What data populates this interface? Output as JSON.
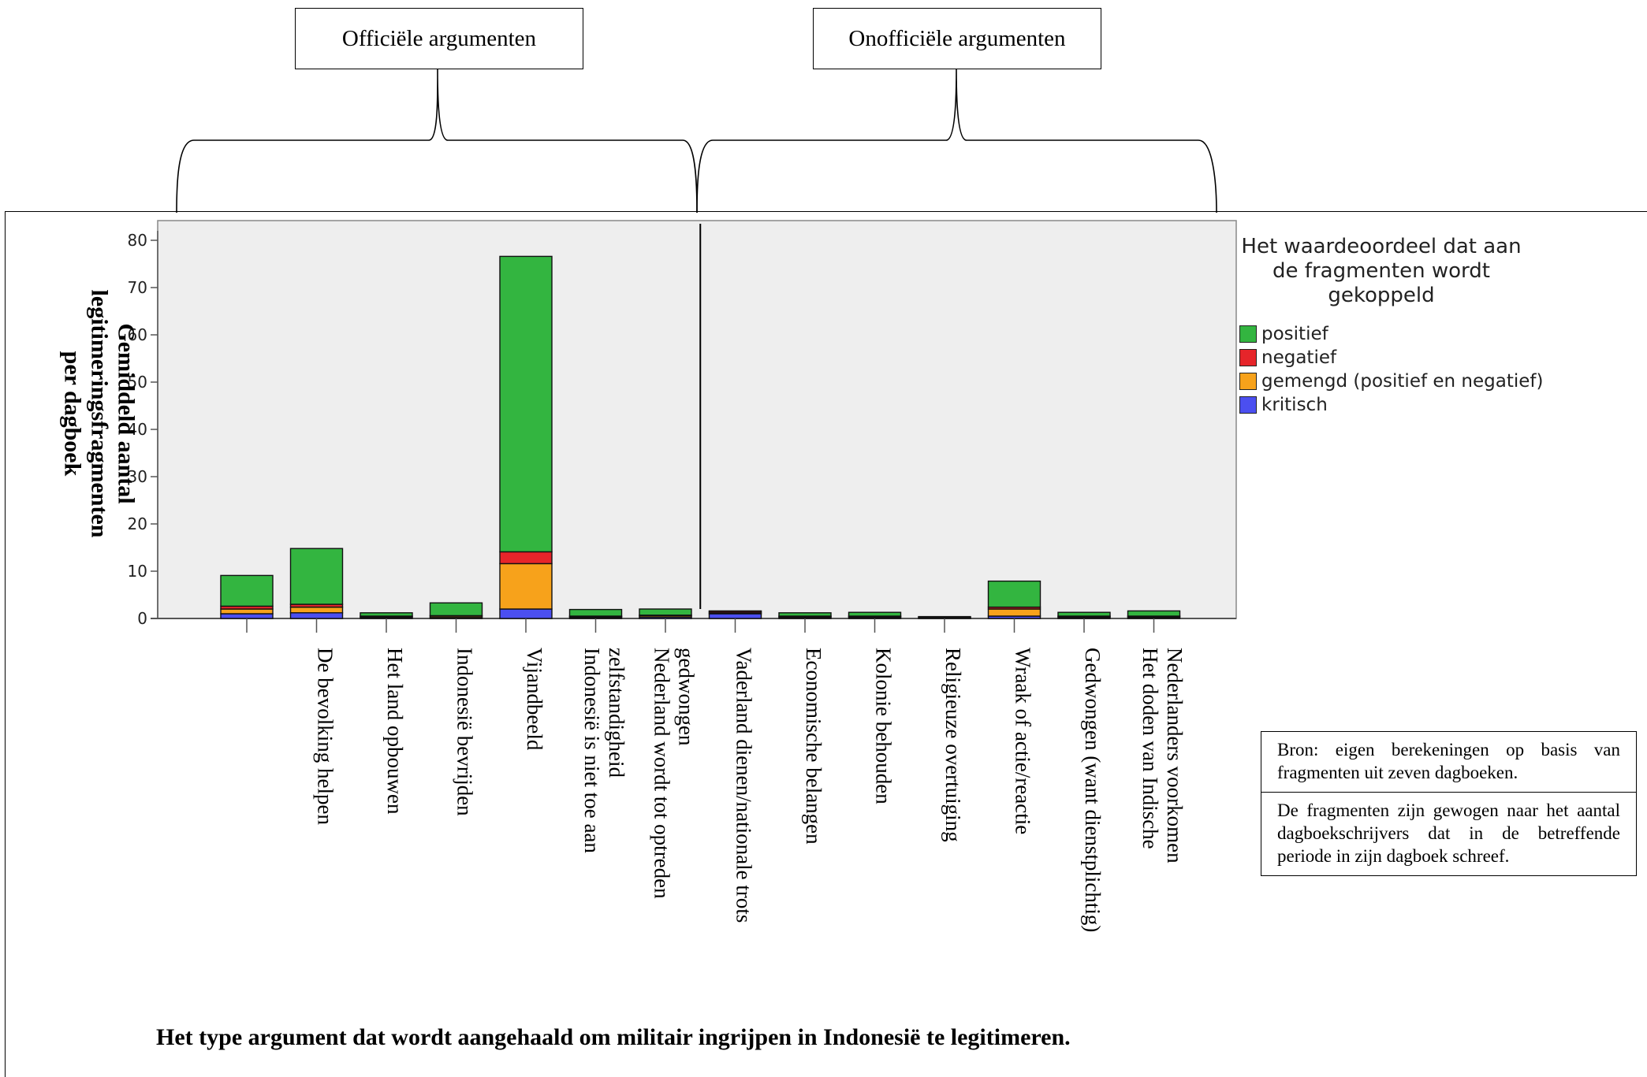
{
  "groups": {
    "official": "Officiële argumenten",
    "unofficial": "Onofficiële argumenten"
  },
  "colors": {
    "positief": "#33b540",
    "negatief": "#e6252a",
    "gemengd": "#f7a21b",
    "kritisch": "#4b4ff0",
    "plot_bg": "#eeeeee"
  },
  "legend": {
    "title_lines": [
      "Het waardeoordeel dat aan",
      "de fragmenten wordt",
      "gekoppeld"
    ],
    "items": [
      {
        "label": "positief",
        "color_key": "positief"
      },
      {
        "label": "negatief",
        "color_key": "negatief"
      },
      {
        "label": "gemengd (positief en negatief)",
        "color_key": "gemengd"
      },
      {
        "label": "kritisch",
        "color_key": "kritisch"
      }
    ]
  },
  "notes": [
    "Bron: eigen berekeningen op basis van fragmenten uit zeven dagboeken.",
    "De fragmenten zijn gewogen naar het aantal dagboekschrijvers dat in de betreffende periode in zijn dagboek schreef."
  ],
  "caption": "Het type argument dat wordt aangehaald om militair ingrijpen in Indonesië te legitimeren.",
  "chart_data": {
    "type": "bar",
    "stacked": true,
    "title": "",
    "ylabel_lines": [
      "Gemiddeld aantal",
      "legitimeringsfragmenten",
      "per dagboek"
    ],
    "xlabel": "",
    "ylim": [
      0,
      82
    ],
    "yticks": [
      0,
      10,
      20,
      30,
      40,
      50,
      60,
      70,
      80
    ],
    "grid": false,
    "legend_position": "right",
    "divider_after_category_index": 6,
    "categories": [
      "",
      "De bevolking helpen",
      "Het land opbouwen",
      "Indonesië bevrijden",
      "Vijandbeeld",
      "Indonesië is niet toe aan zelfstandigheid",
      "Nederland wordt tot optreden gedwongen",
      "Vaderland dienen/nationale trots",
      "Economische belangen",
      "Kolonie behouden",
      "Religieuze overtuiging",
      "Wraak of actie/reactie",
      "Gedwongen (want dienstplichtig)",
      "Het doden van Indische Nederlanders voorkomen"
    ],
    "category_label_lines": [
      [],
      [
        "De bevolking helpen"
      ],
      [
        "Het land opbouwen"
      ],
      [
        "Indonesië bevrijden"
      ],
      [
        "Vijandbeeld"
      ],
      [
        "Indonesië is niet toe aan",
        "zelfstandigheid"
      ],
      [
        "Nederland wordt tot optreden",
        "gedwongen"
      ],
      [
        "Vaderland dienen/nationale trots"
      ],
      [
        "Economische belangen"
      ],
      [
        "Kolonie behouden"
      ],
      [
        "Religieuze overtuiging"
      ],
      [
        "Wraak of actie/reactie"
      ],
      [
        "Gedwongen (want dienstplichtig)"
      ],
      [
        "Het doden van Indische",
        "Nederlanders voorkomen"
      ]
    ],
    "series": [
      {
        "name": "kritisch",
        "color_key": "kritisch",
        "values": [
          1.0,
          1.2,
          0.2,
          0.2,
          2.0,
          0.2,
          0.3,
          1.0,
          0.2,
          0.2,
          0.1,
          0.5,
          0.2,
          0.2
        ]
      },
      {
        "name": "gemengd (positief en negatief)",
        "color_key": "gemengd",
        "values": [
          1.0,
          1.2,
          0.2,
          0.3,
          9.6,
          0.2,
          0.3,
          0.2,
          0.2,
          0.2,
          0.1,
          1.5,
          0.2,
          0.2
        ]
      },
      {
        "name": "negatief",
        "color_key": "negatief",
        "values": [
          0.6,
          0.6,
          0.1,
          0.1,
          2.5,
          0.1,
          0.1,
          0.3,
          0.1,
          0.1,
          0.0,
          0.4,
          0.1,
          0.1
        ]
      },
      {
        "name": "positief",
        "color_key": "positief",
        "values": [
          6.5,
          11.8,
          0.7,
          2.7,
          62.5,
          1.4,
          1.3,
          0.1,
          0.7,
          0.8,
          0.2,
          5.5,
          0.8,
          1.1
        ]
      }
    ]
  }
}
